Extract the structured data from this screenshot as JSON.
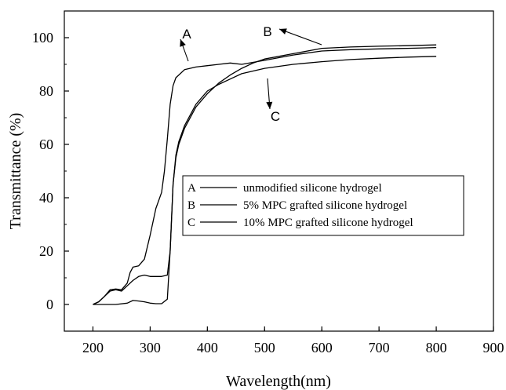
{
  "chart_data": {
    "type": "line",
    "xlabel": "Wavelength(nm)",
    "ylabel": "Transmittance (%)",
    "xlim": [
      150,
      900
    ],
    "ylim": [
      -10,
      110
    ],
    "xticks": [
      200,
      300,
      400,
      500,
      600,
      700,
      800,
      900
    ],
    "yticks": [
      0,
      20,
      40,
      60,
      80,
      100
    ],
    "grid": false,
    "legend_position": "center-right",
    "series": [
      {
        "id": "A",
        "name": "unmodified silicone hydrogel",
        "color": "#000000",
        "x": [
          200,
          210,
          220,
          230,
          240,
          250,
          260,
          265,
          270,
          280,
          290,
          300,
          310,
          320,
          325,
          330,
          335,
          340,
          345,
          350,
          360,
          380,
          400,
          420,
          440,
          460,
          500,
          550,
          600,
          650,
          700,
          750,
          800
        ],
        "y": [
          0,
          1,
          3,
          5.5,
          5.8,
          5.5,
          8,
          12,
          14,
          14.5,
          17,
          26,
          36,
          42,
          50,
          62,
          75,
          82,
          85,
          86,
          88,
          89,
          89.5,
          90,
          90.5,
          90,
          91.5,
          93.5,
          95,
          95.5,
          95.8,
          96,
          96.3
        ]
      },
      {
        "id": "B",
        "name": "5% MPC grafted silicone hydrogel",
        "color": "#000000",
        "x": [
          200,
          210,
          220,
          230,
          240,
          250,
          260,
          270,
          280,
          290,
          300,
          310,
          320,
          330,
          335,
          340,
          345,
          350,
          360,
          380,
          400,
          420,
          440,
          460,
          480,
          500,
          550,
          600,
          650,
          700,
          750,
          800
        ],
        "y": [
          0,
          1,
          3,
          5,
          5.5,
          5,
          7,
          9,
          10.5,
          11,
          10.5,
          10.5,
          10.5,
          11,
          20,
          45,
          55,
          60,
          66,
          74,
          79,
          83,
          86,
          88.5,
          90.5,
          92,
          94,
          96,
          96.5,
          96.8,
          97,
          97.3
        ]
      },
      {
        "id": "C",
        "name": "10% MPC grafted silicone hydrogel",
        "color": "#000000",
        "x": [
          200,
          220,
          240,
          260,
          270,
          280,
          290,
          300,
          310,
          320,
          330,
          335,
          340,
          345,
          350,
          360,
          380,
          400,
          420,
          440,
          460,
          500,
          550,
          600,
          650,
          700,
          750,
          800
        ],
        "y": [
          0,
          0,
          0,
          0.5,
          1.5,
          1.3,
          1,
          0.5,
          0.3,
          0.3,
          2,
          20,
          45,
          56,
          61,
          67,
          75,
          80,
          82.5,
          84.5,
          86.5,
          88.5,
          90,
          91,
          91.8,
          92.3,
          92.7,
          93
        ]
      }
    ],
    "annotations": [
      {
        "label": "A",
        "points_to": [
          325,
          70
        ]
      },
      {
        "label": "B",
        "points_to": [
          560,
          95.5
        ]
      },
      {
        "label": "C",
        "points_to": [
          500,
          89.5
        ]
      }
    ],
    "legend": {
      "entries": [
        {
          "key": "A",
          "text": "unmodified silicone hydrogel"
        },
        {
          "key": "B",
          "text": "5% MPC grafted silicone hydrogel"
        },
        {
          "key": "C",
          "text": "10% MPC grafted silicone hydrogel"
        }
      ]
    }
  }
}
